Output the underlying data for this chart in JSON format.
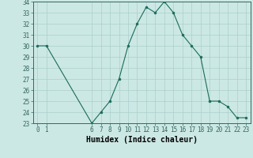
{
  "x": [
    0,
    1,
    6,
    7,
    8,
    9,
    10,
    11,
    12,
    13,
    14,
    15,
    16,
    17,
    18,
    19,
    20,
    21,
    22,
    23
  ],
  "y": [
    30.0,
    30.0,
    23.0,
    24.0,
    25.0,
    27.0,
    30.0,
    32.0,
    33.5,
    33.0,
    34.0,
    33.0,
    31.0,
    30.0,
    29.0,
    25.0,
    25.0,
    24.5,
    23.5,
    23.5
  ],
  "xlim": [
    -0.5,
    23.5
  ],
  "ylim": [
    23,
    34
  ],
  "yticks": [
    23,
    24,
    25,
    26,
    27,
    28,
    29,
    30,
    31,
    32,
    33,
    34
  ],
  "xticks": [
    0,
    1,
    6,
    7,
    8,
    9,
    10,
    11,
    12,
    13,
    14,
    15,
    16,
    17,
    18,
    19,
    20,
    21,
    22,
    23
  ],
  "xlabel": "Humidex (Indice chaleur)",
  "line_color": "#1a6b5a",
  "marker_color": "#1a6b5a",
  "bg_color": "#cce8e4",
  "grid_color": "#aacfcb",
  "tick_fontsize": 5.5,
  "xlabel_fontsize": 7.0
}
